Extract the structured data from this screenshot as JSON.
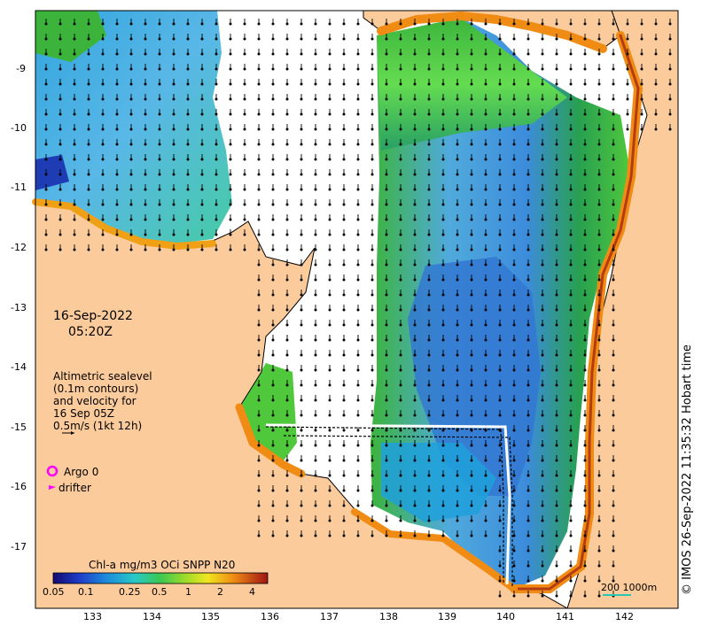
{
  "map": {
    "date_line1": "16-Sep-2022",
    "date_line2": "05:20Z",
    "annotation_lines": [
      "Altimetric sealevel",
      "(0.1m contours)",
      "and velocity for",
      "16 Sep 05Z",
      "0.5m/s (1kt 12h)"
    ],
    "legend_argo": "Argo 0",
    "legend_drifter": "drifter",
    "copyright": "© IMOS 26-Sep-2022 11:35:32 Hobart time",
    "scale_bar_label": "200  1000m",
    "colorbar": {
      "title": "Chl-a mg/m3 OCi SNPP N20",
      "ticks": [
        "0.05",
        "0.1",
        "0.25",
        "0.5",
        "1",
        "2",
        "4"
      ]
    },
    "lon_ticks": [
      "133",
      "134",
      "135",
      "136",
      "137",
      "138",
      "139",
      "140",
      "141",
      "142"
    ],
    "lat_ticks": [
      "-9",
      "-10",
      "-11",
      "-12",
      "-13",
      "-14",
      "-15",
      "-16",
      "-17"
    ],
    "colors": {
      "land": "#fccb9b",
      "no_data": "#ffffff",
      "argo": "#ff00ff",
      "drifter": "#ff00ff"
    }
  }
}
